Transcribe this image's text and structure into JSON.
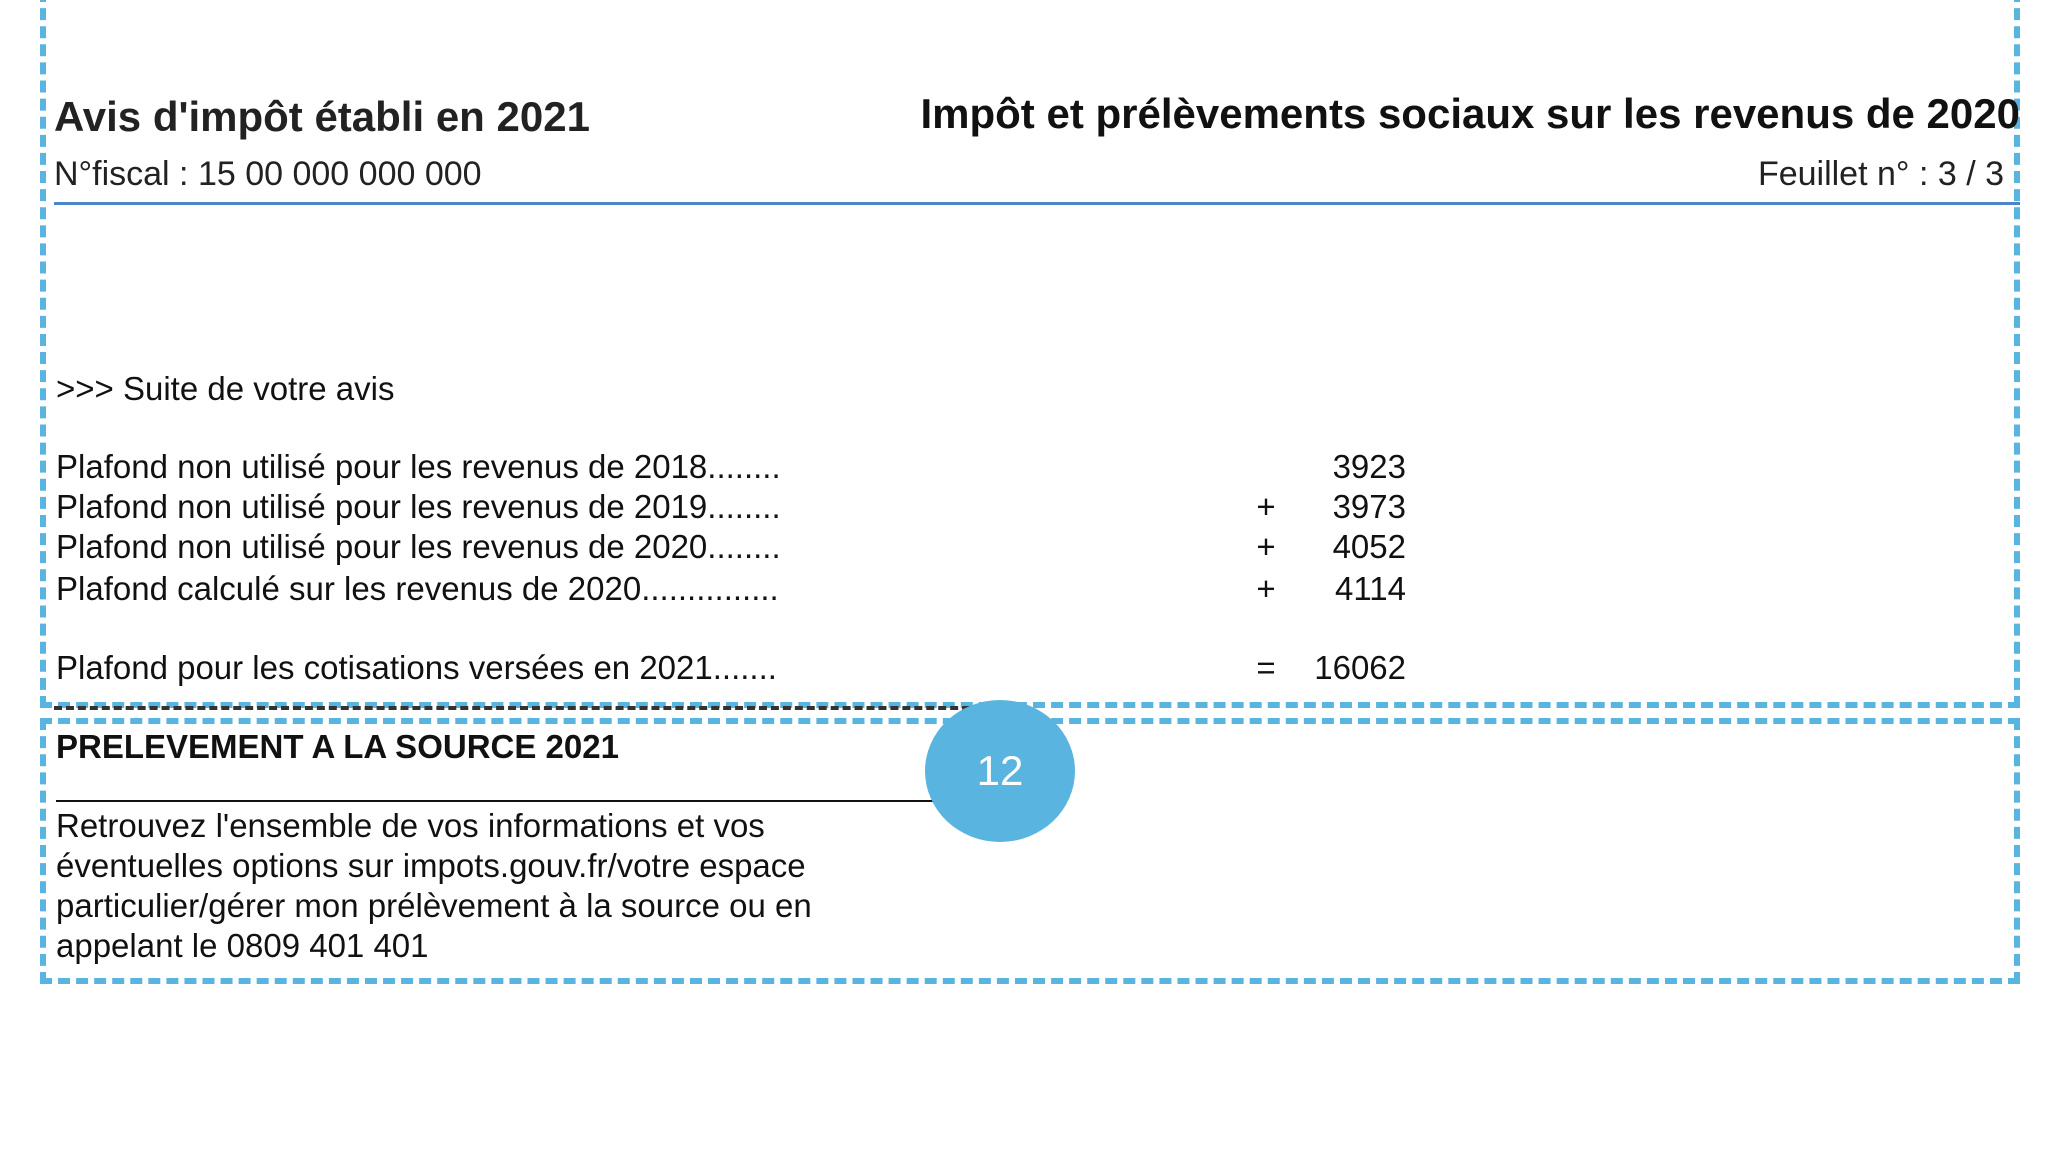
{
  "header": {
    "title_left": "Avis d'impôt établi en 2021",
    "title_right": "Impôt et prélèvements sociaux sur les revenus de 2020",
    "fiscal_number": "N°fiscal :  15 00 000 000 000",
    "sheet": "Feuillet n° :  3   / 3"
  },
  "body": {
    "intro": ">>> Suite de votre avis",
    "rows": [
      {
        "label": "Plafond non utilisé pour les revenus de 2018........",
        "op": "",
        "value": "3923"
      },
      {
        "label": "Plafond non utilisé pour les revenus de 2019........",
        "op": "+",
        "value": "3973"
      },
      {
        "label": "Plafond non utilisé pour les revenus de 2020........",
        "op": "+",
        "value": "4052"
      },
      {
        "label": "Plafond calculé sur les revenus de 2020...............",
        "op": "+",
        "value": "4114"
      },
      {
        "label": "Plafond pour les cotisations versées en 2021.......",
        "op": "=",
        "value": "16062"
      }
    ]
  },
  "section": {
    "title": "PRELEVEMENT A LA SOURCE 2021",
    "text": "Retrouvez l'ensemble de vos informations et vos éventuelles options sur impots.gouv.fr/votre espace particulier/gérer mon prélèvement à la source ou en appelant le 0809 401 401"
  },
  "badge": {
    "number": "12",
    "color": "#5ab4e0"
  },
  "colors": {
    "frame": "#5ab4e0",
    "rule": "#4a86c8"
  }
}
